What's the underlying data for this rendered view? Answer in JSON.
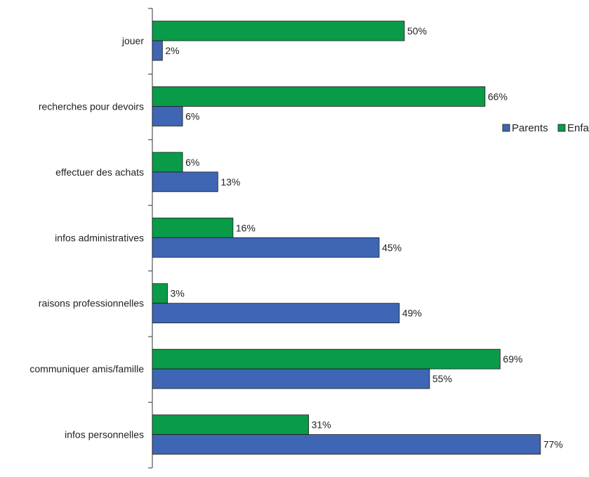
{
  "chart_data": {
    "type": "bar",
    "orientation": "horizontal",
    "categories": [
      "jouer",
      "recherches pour devoirs",
      "effectuer des achats",
      "infos administratives",
      "raisons professionnelles",
      "communiquer amis/famille",
      "infos personnelles"
    ],
    "series": [
      {
        "name": "Enfants",
        "color": "#0a9b48",
        "values": [
          50,
          66,
          6,
          16,
          3,
          69,
          31
        ],
        "labels": [
          "50%",
          "66%",
          "6%",
          "16%",
          "3%",
          "69%",
          "31%"
        ]
      },
      {
        "name": "Parents",
        "color": "#3e66b4",
        "values": [
          2,
          6,
          13,
          45,
          49,
          55,
          77
        ],
        "labels": [
          "2%",
          "6%",
          "13%",
          "45%",
          "49%",
          "55%",
          "77%"
        ]
      }
    ],
    "legend_order": [
      "Parents",
      "Enfants"
    ],
    "legend_position": "right",
    "title": "",
    "xlabel": "",
    "ylabel": "",
    "xlim": [
      0,
      100
    ],
    "grid": false
  }
}
